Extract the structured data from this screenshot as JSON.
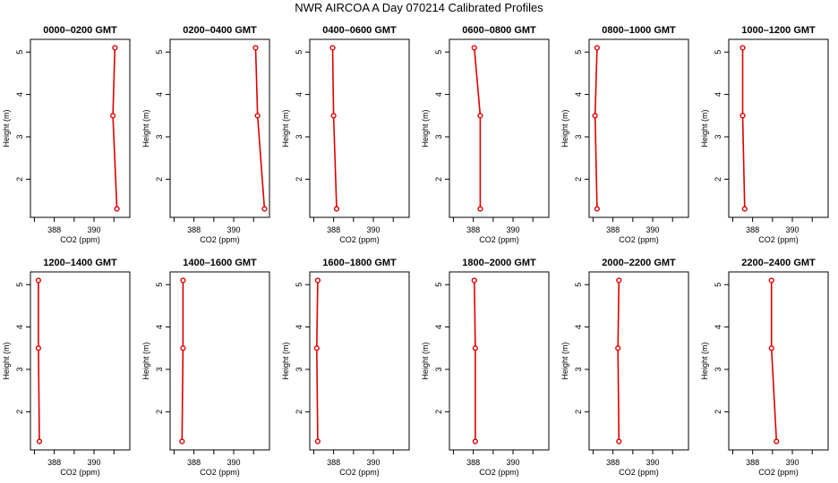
{
  "figure": {
    "title": "NWR AIRCOA A  Day 070214  Calibrated Profiles"
  },
  "chart_data": [
    {
      "type": "line",
      "title": "0000–0200 GMT",
      "xlabel": "CO2 (ppm)",
      "ylabel": "Height (m)",
      "xlim": [
        386.8,
        391.8
      ],
      "ylim": [
        1.1,
        5.3
      ],
      "xticks": [
        388,
        390
      ],
      "yticks": [
        2,
        3,
        4,
        5
      ],
      "grid": false,
      "series": [
        {
          "x": [
            391.05,
            390.95,
            391.15
          ],
          "y": [
            5.1,
            3.5,
            1.3
          ]
        }
      ]
    },
    {
      "type": "line",
      "title": "0200–0400 GMT",
      "xlabel": "CO2 (ppm)",
      "ylabel": "Height (m)",
      "xlim": [
        386.8,
        391.8
      ],
      "ylim": [
        1.1,
        5.3
      ],
      "xticks": [
        388,
        390
      ],
      "yticks": [
        2,
        3,
        4,
        5
      ],
      "grid": false,
      "series": [
        {
          "x": [
            391.1,
            391.2,
            391.55
          ],
          "y": [
            5.1,
            3.5,
            1.3
          ]
        }
      ]
    },
    {
      "type": "line",
      "title": "0400–0600 GMT",
      "xlabel": "CO2 (ppm)",
      "ylabel": "Height (m)",
      "xlim": [
        386.8,
        391.8
      ],
      "ylim": [
        1.1,
        5.3
      ],
      "xticks": [
        388,
        390
      ],
      "yticks": [
        2,
        3,
        4,
        5
      ],
      "grid": false,
      "series": [
        {
          "x": [
            387.95,
            388.0,
            388.15
          ],
          "y": [
            5.1,
            3.5,
            1.3
          ]
        }
      ]
    },
    {
      "type": "line",
      "title": "0600–0800 GMT",
      "xlabel": "CO2 (ppm)",
      "ylabel": "Height (m)",
      "xlim": [
        386.8,
        391.8
      ],
      "ylim": [
        1.1,
        5.3
      ],
      "xticks": [
        388,
        390
      ],
      "yticks": [
        2,
        3,
        4,
        5
      ],
      "grid": false,
      "series": [
        {
          "x": [
            388.05,
            388.35,
            388.35
          ],
          "y": [
            5.1,
            3.5,
            1.3
          ]
        }
      ]
    },
    {
      "type": "line",
      "title": "0800–1000 GMT",
      "xlabel": "CO2 (ppm)",
      "ylabel": "Height (m)",
      "xlim": [
        386.8,
        391.8
      ],
      "ylim": [
        1.1,
        5.3
      ],
      "xticks": [
        388,
        390
      ],
      "yticks": [
        2,
        3,
        4,
        5
      ],
      "grid": false,
      "series": [
        {
          "x": [
            387.2,
            387.1,
            387.2
          ],
          "y": [
            5.1,
            3.5,
            1.3
          ]
        }
      ]
    },
    {
      "type": "line",
      "title": "1000–1200 GMT",
      "xlabel": "CO2 (ppm)",
      "ylabel": "Height (m)",
      "xlim": [
        386.8,
        391.8
      ],
      "ylim": [
        1.1,
        5.3
      ],
      "xticks": [
        388,
        390
      ],
      "yticks": [
        2,
        3,
        4,
        5
      ],
      "grid": false,
      "series": [
        {
          "x": [
            387.5,
            387.5,
            387.6
          ],
          "y": [
            5.1,
            3.5,
            1.3
          ]
        }
      ]
    },
    {
      "type": "line",
      "title": "1200–1400 GMT",
      "xlabel": "CO2 (ppm)",
      "ylabel": "Height (m)",
      "xlim": [
        386.8,
        391.8
      ],
      "ylim": [
        1.1,
        5.3
      ],
      "xticks": [
        388,
        390
      ],
      "yticks": [
        2,
        3,
        4,
        5
      ],
      "grid": false,
      "series": [
        {
          "x": [
            387.2,
            387.2,
            387.25
          ],
          "y": [
            5.1,
            3.5,
            1.3
          ]
        }
      ]
    },
    {
      "type": "line",
      "title": "1400–1600 GMT",
      "xlabel": "CO2 (ppm)",
      "ylabel": "Height (m)",
      "xlim": [
        386.8,
        391.8
      ],
      "ylim": [
        1.1,
        5.3
      ],
      "xticks": [
        388,
        390
      ],
      "yticks": [
        2,
        3,
        4,
        5
      ],
      "grid": false,
      "series": [
        {
          "x": [
            387.45,
            387.45,
            387.4
          ],
          "y": [
            5.1,
            3.5,
            1.3
          ]
        }
      ]
    },
    {
      "type": "line",
      "title": "1600–1800 GMT",
      "xlabel": "CO2 (ppm)",
      "ylabel": "Height (m)",
      "xlim": [
        386.8,
        391.8
      ],
      "ylim": [
        1.1,
        5.3
      ],
      "xticks": [
        388,
        390
      ],
      "yticks": [
        2,
        3,
        4,
        5
      ],
      "grid": false,
      "series": [
        {
          "x": [
            387.2,
            387.15,
            387.2
          ],
          "y": [
            5.1,
            3.5,
            1.3
          ]
        }
      ]
    },
    {
      "type": "line",
      "title": "1800–2000 GMT",
      "xlabel": "CO2 (ppm)",
      "ylabel": "Height (m)",
      "xlim": [
        386.8,
        391.8
      ],
      "ylim": [
        1.1,
        5.3
      ],
      "xticks": [
        388,
        390
      ],
      "yticks": [
        2,
        3,
        4,
        5
      ],
      "grid": false,
      "series": [
        {
          "x": [
            388.05,
            388.1,
            388.1
          ],
          "y": [
            5.1,
            3.5,
            1.3
          ]
        }
      ]
    },
    {
      "type": "line",
      "title": "2000–2200 GMT",
      "xlabel": "CO2 (ppm)",
      "ylabel": "Height (m)",
      "xlim": [
        386.8,
        391.8
      ],
      "ylim": [
        1.1,
        5.3
      ],
      "xticks": [
        388,
        390
      ],
      "yticks": [
        2,
        3,
        4,
        5
      ],
      "grid": false,
      "series": [
        {
          "x": [
            388.3,
            388.25,
            388.3
          ],
          "y": [
            5.1,
            3.5,
            1.3
          ]
        }
      ]
    },
    {
      "type": "line",
      "title": "2200–2400 GMT",
      "xlabel": "CO2 (ppm)",
      "ylabel": "Height (m)",
      "xlim": [
        386.8,
        391.8
      ],
      "ylim": [
        1.1,
        5.3
      ],
      "xticks": [
        388,
        390
      ],
      "yticks": [
        2,
        3,
        4,
        5
      ],
      "grid": false,
      "series": [
        {
          "x": [
            388.95,
            388.95,
            389.2
          ],
          "y": [
            5.1,
            3.5,
            1.3
          ]
        }
      ]
    }
  ],
  "colors": {
    "series": "#dd0000",
    "axes": "#000000"
  }
}
